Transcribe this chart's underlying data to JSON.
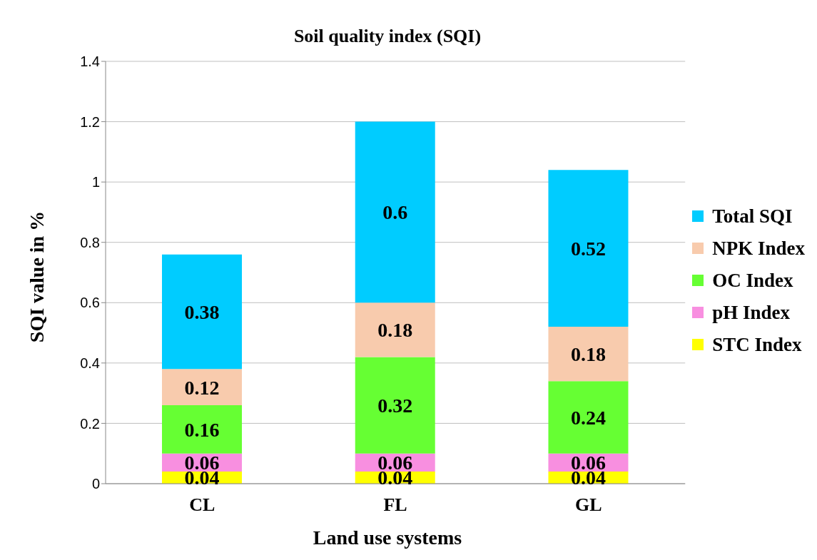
{
  "chart_data": {
    "type": "bar",
    "title": "Soil quality index (SQI)",
    "xlabel": "Land use systems",
    "ylabel": "SQI value in %",
    "categories": [
      "CL",
      "FL",
      "GL"
    ],
    "stacked": true,
    "data_labels": true,
    "grid": "y",
    "legend": "right",
    "ylim": [
      0,
      1.4
    ],
    "yticks": [
      0,
      0.2,
      0.4,
      0.6,
      0.8,
      1,
      1.2,
      1.4
    ],
    "series": [
      {
        "name": "STC Index",
        "color": "#ffff00",
        "values": [
          0.04,
          0.04,
          0.04
        ]
      },
      {
        "name": "pH Index",
        "color": "#f88fe0",
        "values": [
          0.06,
          0.06,
          0.06
        ]
      },
      {
        "name": "OC Index",
        "color": "#66ff33",
        "values": [
          0.16,
          0.32,
          0.24
        ]
      },
      {
        "name": "NPK Index",
        "color": "#f8cbad",
        "values": [
          0.12,
          0.18,
          0.18
        ]
      },
      {
        "name": "Total SQI",
        "color": "#00ccff",
        "values": [
          0.38,
          0.6,
          0.52
        ]
      }
    ]
  }
}
